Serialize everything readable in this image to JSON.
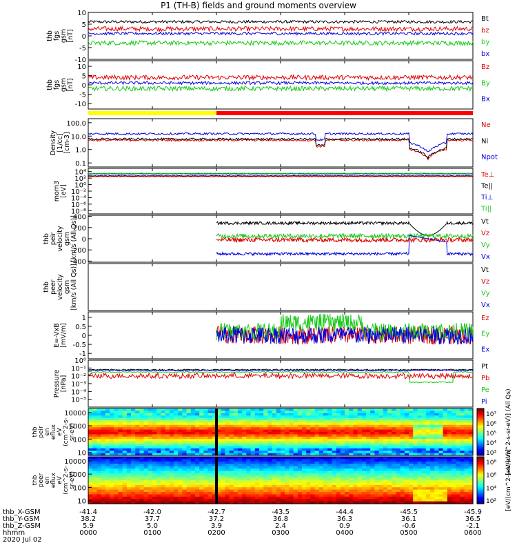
{
  "title": "P1 (TH-B) fields and ground moments overview",
  "colors": {
    "black": "#000000",
    "red": "#e00000",
    "green": "#18c818",
    "blue": "#0000e0",
    "yellow": "#ffff00",
    "bar_red": "#ff0000"
  },
  "chart_data": {
    "type": "line",
    "x_range": [
      "00:00",
      "06:00"
    ],
    "mode_bar": {
      "yellow_until": "02:00",
      "red_from": "02:00"
    },
    "panels": [
      {
        "id": "fgs",
        "ylabel": [
          "thb",
          "fgs",
          "gsm",
          "[nT]"
        ],
        "yticks": [
          "10",
          "5",
          "0",
          "-5",
          "-10"
        ],
        "ylim": [
          -10,
          10
        ],
        "scale": "linear",
        "series": [
          {
            "name": "Bt",
            "color": "black",
            "level": 6
          },
          {
            "name": "bz",
            "color": "red",
            "level": 3
          },
          {
            "name": "by",
            "color": "green",
            "level": -3
          },
          {
            "name": "bx",
            "color": "blue",
            "level": 1
          }
        ]
      },
      {
        "id": "fgs2",
        "ylabel": [
          "thb",
          "fgs",
          "gsm",
          "[nT]"
        ],
        "yticks": [
          "10",
          "5",
          "0",
          "-5",
          "-10"
        ],
        "ylim": [
          -13,
          13
        ],
        "scale": "linear",
        "series": [
          {
            "name": "Bz",
            "color": "red",
            "level": 4
          },
          {
            "name": "By",
            "color": "green",
            "level": -2
          },
          {
            "name": "Bx",
            "color": "blue",
            "level": 1
          }
        ]
      },
      {
        "id": "density",
        "ylabel": [
          "Density",
          "[1/cc]",
          "[cm-3]"
        ],
        "yticks": [
          "100.0",
          "10.0",
          "1.0",
          "0.1"
        ],
        "ylim": [
          0.05,
          200
        ],
        "scale": "log",
        "series": [
          {
            "name": "Ne",
            "color": "red",
            "level": 5
          },
          {
            "name": "Ni",
            "color": "black",
            "level": 6
          },
          {
            "name": "Npot",
            "color": "blue",
            "level": 15
          }
        ]
      },
      {
        "id": "temp",
        "ylabel": [
          "mom3",
          "[eV]"
        ],
        "yticks": [
          "10⁴",
          "10²",
          "10⁰",
          "10⁻²",
          "10⁻⁴",
          "10⁻⁶",
          "10⁻⁸"
        ],
        "ylim": [
          1e-09,
          100000.0
        ],
        "scale": "log",
        "series": [
          {
            "name": "Te⊥",
            "color": "red",
            "level": 300
          },
          {
            "name": "Te||",
            "color": "black",
            "level": 500
          },
          {
            "name": "Ti⊥",
            "color": "blue",
            "level": 2000
          },
          {
            "name": "Ti||",
            "color": "green",
            "level": 3000
          }
        ]
      },
      {
        "id": "vel_i",
        "ylabel": [
          "thb",
          "peir",
          "velocity",
          "gsm",
          "[km/s (All Qs)]"
        ],
        "yticks": [
          "400",
          "200",
          "0",
          "-200",
          "-400"
        ],
        "ylim": [
          -420,
          420
        ],
        "scale": "linear",
        "series": [
          {
            "name": "Vt",
            "color": "black",
            "level": 280
          },
          {
            "name": "Vz",
            "color": "red",
            "level": -20
          },
          {
            "name": "Vy",
            "color": "green",
            "level": 50
          },
          {
            "name": "Vx",
            "color": "blue",
            "level": -270
          }
        ]
      },
      {
        "id": "vel_e",
        "ylabel": [
          "thb",
          "peer",
          "velocity",
          "gsm",
          "[km/s (All Qs)]"
        ],
        "yticks": [],
        "ylim": [
          -1,
          1
        ],
        "scale": "linear",
        "series": [
          {
            "name": "Vt",
            "color": "black"
          },
          {
            "name": "Vz",
            "color": "red"
          },
          {
            "name": "Vy",
            "color": "green"
          },
          {
            "name": "Vx",
            "color": "blue"
          }
        ]
      },
      {
        "id": "efield",
        "ylabel": [
          "E=-VxB",
          "[mV/m]"
        ],
        "yticks": [
          "1",
          "0.5",
          "0",
          "-0.5",
          "-1"
        ],
        "ylim": [
          -1.3,
          1.3
        ],
        "scale": "linear",
        "series": [
          {
            "name": "Ez",
            "color": "red",
            "level": 0
          },
          {
            "name": "Ey",
            "color": "green",
            "level": 0.2
          },
          {
            "name": "Ex",
            "color": "blue",
            "level": 0
          }
        ]
      },
      {
        "id": "pressure",
        "ylabel": [
          "Pressure",
          "[nPa]"
        ],
        "yticks": [
          "10⁰",
          "10⁻¹",
          "10⁻²",
          "10⁻³",
          "10⁻⁴",
          "10⁻⁵"
        ],
        "ylim": [
          1e-06,
          1
        ],
        "scale": "log",
        "series": [
          {
            "name": "Pt",
            "color": "black",
            "level": 0.06
          },
          {
            "name": "Pb",
            "color": "red",
            "level": 0.01
          },
          {
            "name": "Pe",
            "color": "green",
            "level": 0.03
          },
          {
            "name": "Pi",
            "color": "blue",
            "level": 0.05
          }
        ]
      }
    ],
    "spectrograms": [
      {
        "id": "peir",
        "ylabel": [
          "thb",
          "peir",
          "en",
          "eflux",
          "eV",
          "(cm^2-s-",
          "sr-eV)"
        ],
        "yticks": [
          "10000",
          "1000",
          "100",
          "10"
        ],
        "colorbar_ticks": [
          "10⁷",
          "10⁶",
          "10⁵",
          "10⁴",
          "10³"
        ],
        "colorbar_label": "[eV/(cm^2-s-sr-eV)] (All Qs)"
      },
      {
        "id": "peer",
        "ylabel": [
          "thb",
          "peer",
          "en",
          "eflux",
          "eV",
          "(cm^2-s-",
          "sr-eV)"
        ],
        "yticks": [
          "10000",
          "1000",
          "100",
          "10"
        ],
        "colorbar_ticks": [
          "10⁸",
          "10⁶",
          "10⁴",
          "10²"
        ],
        "colorbar_label": "[eV/(cm^2-s-sr-eV)]"
      }
    ],
    "x_axis": {
      "row_labels": [
        "thb_X-GSM",
        "thb_Y-GSM",
        "thb_Z-GSM",
        "hhmm",
        "2020 Jul 02"
      ],
      "ticks": [
        {
          "t": "00:00",
          "x": "-41.4",
          "y": "38.2",
          "z": "5.9",
          "hhmm": "0000"
        },
        {
          "t": "01:00",
          "x": "-42.0",
          "y": "37.7",
          "z": "5.0",
          "hhmm": "0100"
        },
        {
          "t": "02:00",
          "x": "-42.7",
          "y": "37.2",
          "z": "3.9",
          "hhmm": "0200"
        },
        {
          "t": "03:00",
          "x": "-43.5",
          "y": "36.8",
          "z": "2.4",
          "hhmm": "0300"
        },
        {
          "t": "04:00",
          "x": "-44.4",
          "y": "36.3",
          "z": "0.9",
          "hhmm": "0400"
        },
        {
          "t": "05:00",
          "x": "-45.5",
          "y": "36.1",
          "z": "-0.6",
          "hhmm": "0500"
        },
        {
          "t": "06:00",
          "x": "-45.9",
          "y": "36.5",
          "z": "-2.1",
          "hhmm": "0600"
        }
      ]
    }
  }
}
